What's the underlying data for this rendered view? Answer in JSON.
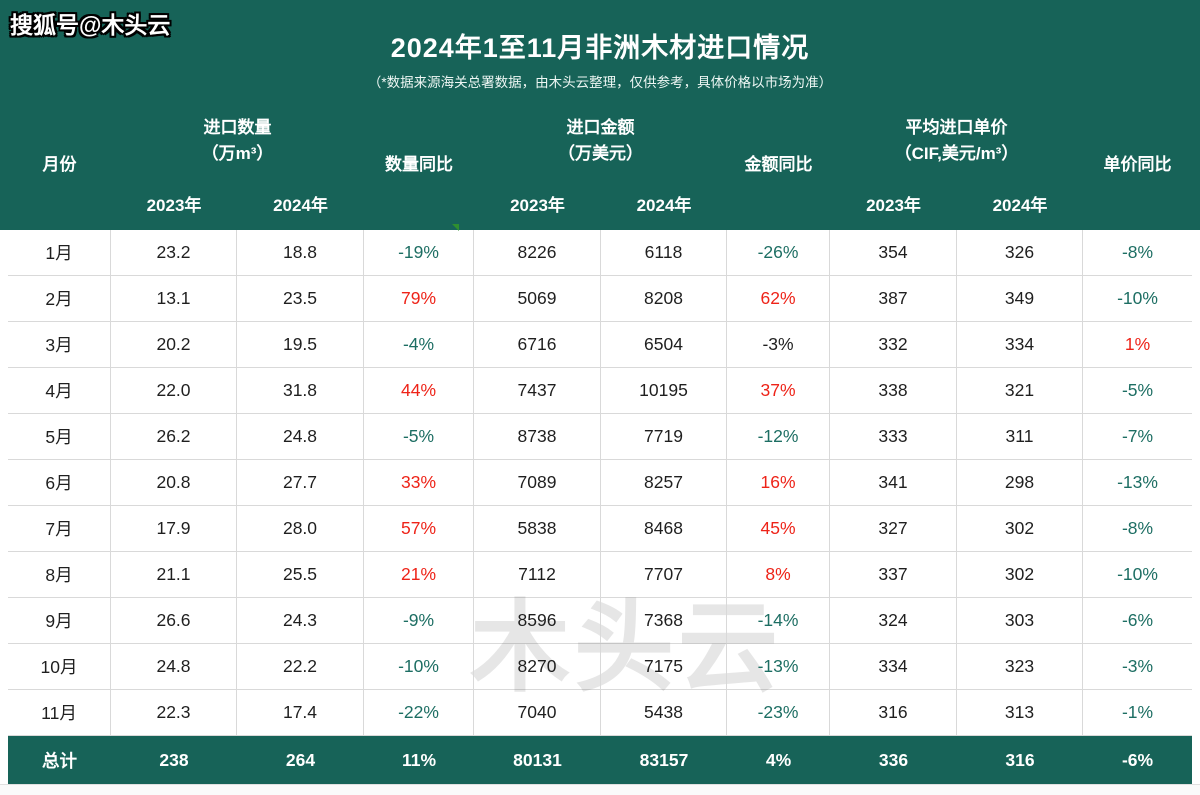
{
  "page": {
    "brand_watermark": "搜狐号@木头云",
    "center_watermark": "木头云"
  },
  "colors": {
    "header_teal": "#176358",
    "trend_down_teal": "#1d6e63",
    "trend_up_red": "#ee2318",
    "grid_line": "#d9d9d9"
  },
  "chart_data": {
    "type": "table",
    "title": "2024年1至11月非洲木材进口情况",
    "subtitle": "（*数据来源海关总署数据，由木头云整理，仅供参考，具体价格以市场为准）",
    "header": {
      "month": "月份",
      "qty_group_title": "进口数量",
      "qty_group_unit": "（万m³）",
      "qty_yoy": "数量同比",
      "amt_group_title": "进口金额",
      "amt_group_unit": "（万美元）",
      "amt_yoy": "金额同比",
      "price_group_title": "平均进口单价",
      "price_group_unit": "（CIF,美元/m³）",
      "price_yoy": "单价同比",
      "year_2023": "2023年",
      "year_2024": "2024年"
    },
    "rows": [
      {
        "month": "1月",
        "qty_2023": "23.2",
        "qty_2024": "18.8",
        "qty_yoy": "-19%",
        "qty_trend": "down",
        "amt_2023": "8226",
        "amt_2024": "6118",
        "amt_yoy": "-26%",
        "amt_trend": "down",
        "price_2023": "354",
        "price_2024": "326",
        "price_yoy": "-8%",
        "price_trend": "down"
      },
      {
        "month": "2月",
        "qty_2023": "13.1",
        "qty_2024": "23.5",
        "qty_yoy": "79%",
        "qty_trend": "up",
        "amt_2023": "5069",
        "amt_2024": "8208",
        "amt_yoy": "62%",
        "amt_trend": "up",
        "price_2023": "387",
        "price_2024": "349",
        "price_yoy": "-10%",
        "price_trend": "down"
      },
      {
        "month": "3月",
        "qty_2023": "20.2",
        "qty_2024": "19.5",
        "qty_yoy": "-4%",
        "qty_trend": "down",
        "amt_2023": "6716",
        "amt_2024": "6504",
        "amt_yoy": "-3%",
        "amt_trend": "flat",
        "price_2023": "332",
        "price_2024": "334",
        "price_yoy": "1%",
        "price_trend": "up"
      },
      {
        "month": "4月",
        "qty_2023": "22.0",
        "qty_2024": "31.8",
        "qty_yoy": "44%",
        "qty_trend": "up",
        "amt_2023": "7437",
        "amt_2024": "10195",
        "amt_yoy": "37%",
        "amt_trend": "up",
        "price_2023": "338",
        "price_2024": "321",
        "price_yoy": "-5%",
        "price_trend": "down"
      },
      {
        "month": "5月",
        "qty_2023": "26.2",
        "qty_2024": "24.8",
        "qty_yoy": "-5%",
        "qty_trend": "down",
        "amt_2023": "8738",
        "amt_2024": "7719",
        "amt_yoy": "-12%",
        "amt_trend": "down",
        "price_2023": "333",
        "price_2024": "311",
        "price_yoy": "-7%",
        "price_trend": "down"
      },
      {
        "month": "6月",
        "qty_2023": "20.8",
        "qty_2024": "27.7",
        "qty_yoy": "33%",
        "qty_trend": "up",
        "amt_2023": "7089",
        "amt_2024": "8257",
        "amt_yoy": "16%",
        "amt_trend": "up",
        "price_2023": "341",
        "price_2024": "298",
        "price_yoy": "-13%",
        "price_trend": "down"
      },
      {
        "month": "7月",
        "qty_2023": "17.9",
        "qty_2024": "28.0",
        "qty_yoy": "57%",
        "qty_trend": "up",
        "amt_2023": "5838",
        "amt_2024": "8468",
        "amt_yoy": "45%",
        "amt_trend": "up",
        "price_2023": "327",
        "price_2024": "302",
        "price_yoy": "-8%",
        "price_trend": "down"
      },
      {
        "month": "8月",
        "qty_2023": "21.1",
        "qty_2024": "25.5",
        "qty_yoy": "21%",
        "qty_trend": "up",
        "amt_2023": "7112",
        "amt_2024": "7707",
        "amt_yoy": "8%",
        "amt_trend": "up",
        "price_2023": "337",
        "price_2024": "302",
        "price_yoy": "-10%",
        "price_trend": "down"
      },
      {
        "month": "9月",
        "qty_2023": "26.6",
        "qty_2024": "24.3",
        "qty_yoy": "-9%",
        "qty_trend": "down",
        "amt_2023": "8596",
        "amt_2024": "7368",
        "amt_yoy": "-14%",
        "amt_trend": "down",
        "price_2023": "324",
        "price_2024": "303",
        "price_yoy": "-6%",
        "price_trend": "down"
      },
      {
        "month": "10月",
        "qty_2023": "24.8",
        "qty_2024": "22.2",
        "qty_yoy": "-10%",
        "qty_trend": "down",
        "amt_2023": "8270",
        "amt_2024": "7175",
        "amt_yoy": "-13%",
        "amt_trend": "down",
        "price_2023": "334",
        "price_2024": "323",
        "price_yoy": "-3%",
        "price_trend": "down"
      },
      {
        "month": "11月",
        "qty_2023": "22.3",
        "qty_2024": "17.4",
        "qty_yoy": "-22%",
        "qty_trend": "down",
        "amt_2023": "7040",
        "amt_2024": "5438",
        "amt_yoy": "-23%",
        "amt_trend": "down",
        "price_2023": "316",
        "price_2024": "313",
        "price_yoy": "-1%",
        "price_trend": "down"
      }
    ],
    "total_row": {
      "month": "总计",
      "qty_2023": "238",
      "qty_2024": "264",
      "qty_yoy": "11%",
      "amt_2023": "80131",
      "amt_2024": "83157",
      "amt_yoy": "4%",
      "price_2023": "336",
      "price_2024": "316",
      "price_yoy": "-6%"
    }
  }
}
